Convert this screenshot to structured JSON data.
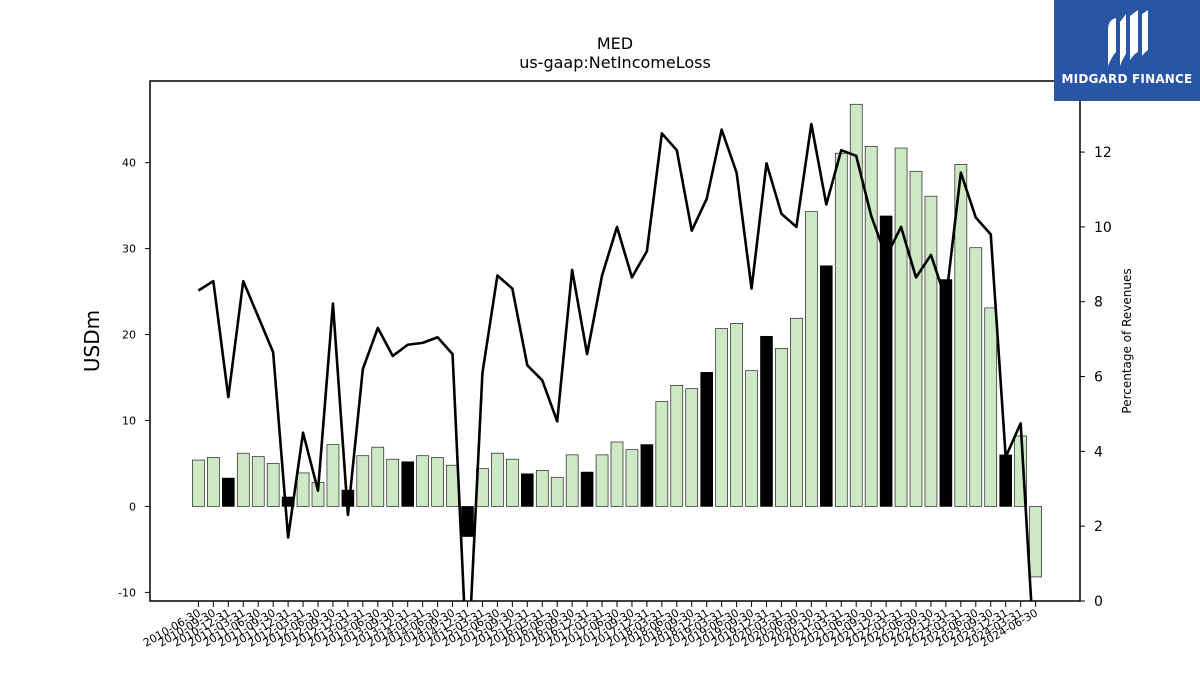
{
  "chart_data": {
    "type": "bar",
    "title": "MED",
    "subtitle": "us-gaap:NetIncomeLoss",
    "ylabel": "USDm",
    "y2label": "Percentage of Revenues",
    "ylim": [
      -11,
      49.5
    ],
    "y2lim": [
      0,
      13.9
    ],
    "yticks": [
      -10,
      0,
      10,
      20,
      30,
      40
    ],
    "y2ticks": [
      0,
      2,
      4,
      6,
      8,
      10,
      12
    ],
    "grid": false,
    "bar_colors": {
      "quarter": "#cce8c4",
      "fiscal_q4": "#000000"
    },
    "line_color": "#000000",
    "categories": [
      "2010-06-30",
      "2010-09-30",
      "2010-12-31",
      "2011-03-31",
      "2011-06-30",
      "2011-09-30",
      "2011-12-31",
      "2012-03-31",
      "2012-06-30",
      "2012-09-30",
      "2012-12-31",
      "2013-03-31",
      "2013-06-30",
      "2013-09-30",
      "2013-12-31",
      "2014-03-31",
      "2014-06-30",
      "2014-09-30",
      "2014-12-31",
      "2015-03-31",
      "2015-06-30",
      "2015-09-30",
      "2015-12-31",
      "2016-03-31",
      "2016-06-30",
      "2016-09-30",
      "2016-12-31",
      "2017-03-31",
      "2017-06-30",
      "2017-09-30",
      "2017-12-31",
      "2018-03-31",
      "2018-06-30",
      "2018-09-30",
      "2018-12-31",
      "2019-03-31",
      "2019-06-30",
      "2019-09-30",
      "2019-12-31",
      "2020-03-31",
      "2020-06-30",
      "2020-09-30",
      "2020-12-31",
      "2021-03-31",
      "2021-06-30",
      "2021-09-30",
      "2021-12-31",
      "2022-03-31",
      "2022-06-30",
      "2022-09-30",
      "2022-12-31",
      "2023-03-31",
      "2023-06-30",
      "2023-09-30",
      "2023-12-31",
      "2024-03-31",
      "2024-06-30"
    ],
    "values": [
      5.4,
      5.7,
      3.3,
      6.2,
      5.8,
      5.0,
      1.1,
      3.9,
      2.8,
      7.2,
      1.9,
      5.9,
      6.9,
      5.5,
      5.2,
      5.9,
      5.7,
      4.8,
      -3.5,
      4.4,
      6.2,
      5.5,
      3.8,
      4.2,
      3.4,
      6.0,
      4.0,
      6.0,
      7.5,
      6.6,
      7.2,
      12.2,
      14.1,
      13.7,
      15.6,
      20.7,
      21.3,
      15.8,
      19.8,
      18.4,
      21.9,
      34.3,
      28.0,
      41.1,
      46.8,
      41.9,
      33.8,
      41.7,
      39.0,
      36.1,
      26.4,
      39.8,
      30.1,
      23.1,
      6.0,
      8.2,
      -8.2
    ],
    "fiscal_q4": [
      false,
      false,
      true,
      false,
      false,
      false,
      true,
      false,
      false,
      false,
      true,
      false,
      false,
      false,
      true,
      false,
      false,
      false,
      true,
      false,
      false,
      false,
      true,
      false,
      false,
      false,
      true,
      false,
      false,
      false,
      true,
      false,
      false,
      false,
      true,
      false,
      false,
      false,
      true,
      false,
      false,
      false,
      true,
      false,
      false,
      false,
      true,
      false,
      false,
      false,
      true,
      false,
      false,
      false,
      true,
      false,
      false
    ],
    "pct_of_revenues": [
      8.3,
      8.55,
      5.45,
      8.55,
      7.6,
      6.65,
      1.7,
      4.5,
      2.95,
      7.95,
      2.3,
      6.2,
      7.3,
      6.55,
      6.85,
      6.9,
      7.05,
      6.6,
      -2.0,
      6.1,
      8.7,
      8.35,
      6.3,
      5.9,
      4.8,
      8.85,
      6.6,
      8.7,
      10.0,
      8.65,
      9.35,
      12.5,
      12.05,
      9.9,
      10.75,
      12.6,
      11.45,
      8.35,
      11.7,
      10.35,
      10.0,
      12.75,
      10.6,
      12.05,
      11.9,
      10.3,
      9.2,
      10.0,
      8.65,
      9.25,
      8.05,
      11.45,
      10.25,
      9.8,
      3.85,
      4.75,
      -2.0
    ]
  },
  "logo": {
    "text": "MIDGARD FINANCE"
  }
}
